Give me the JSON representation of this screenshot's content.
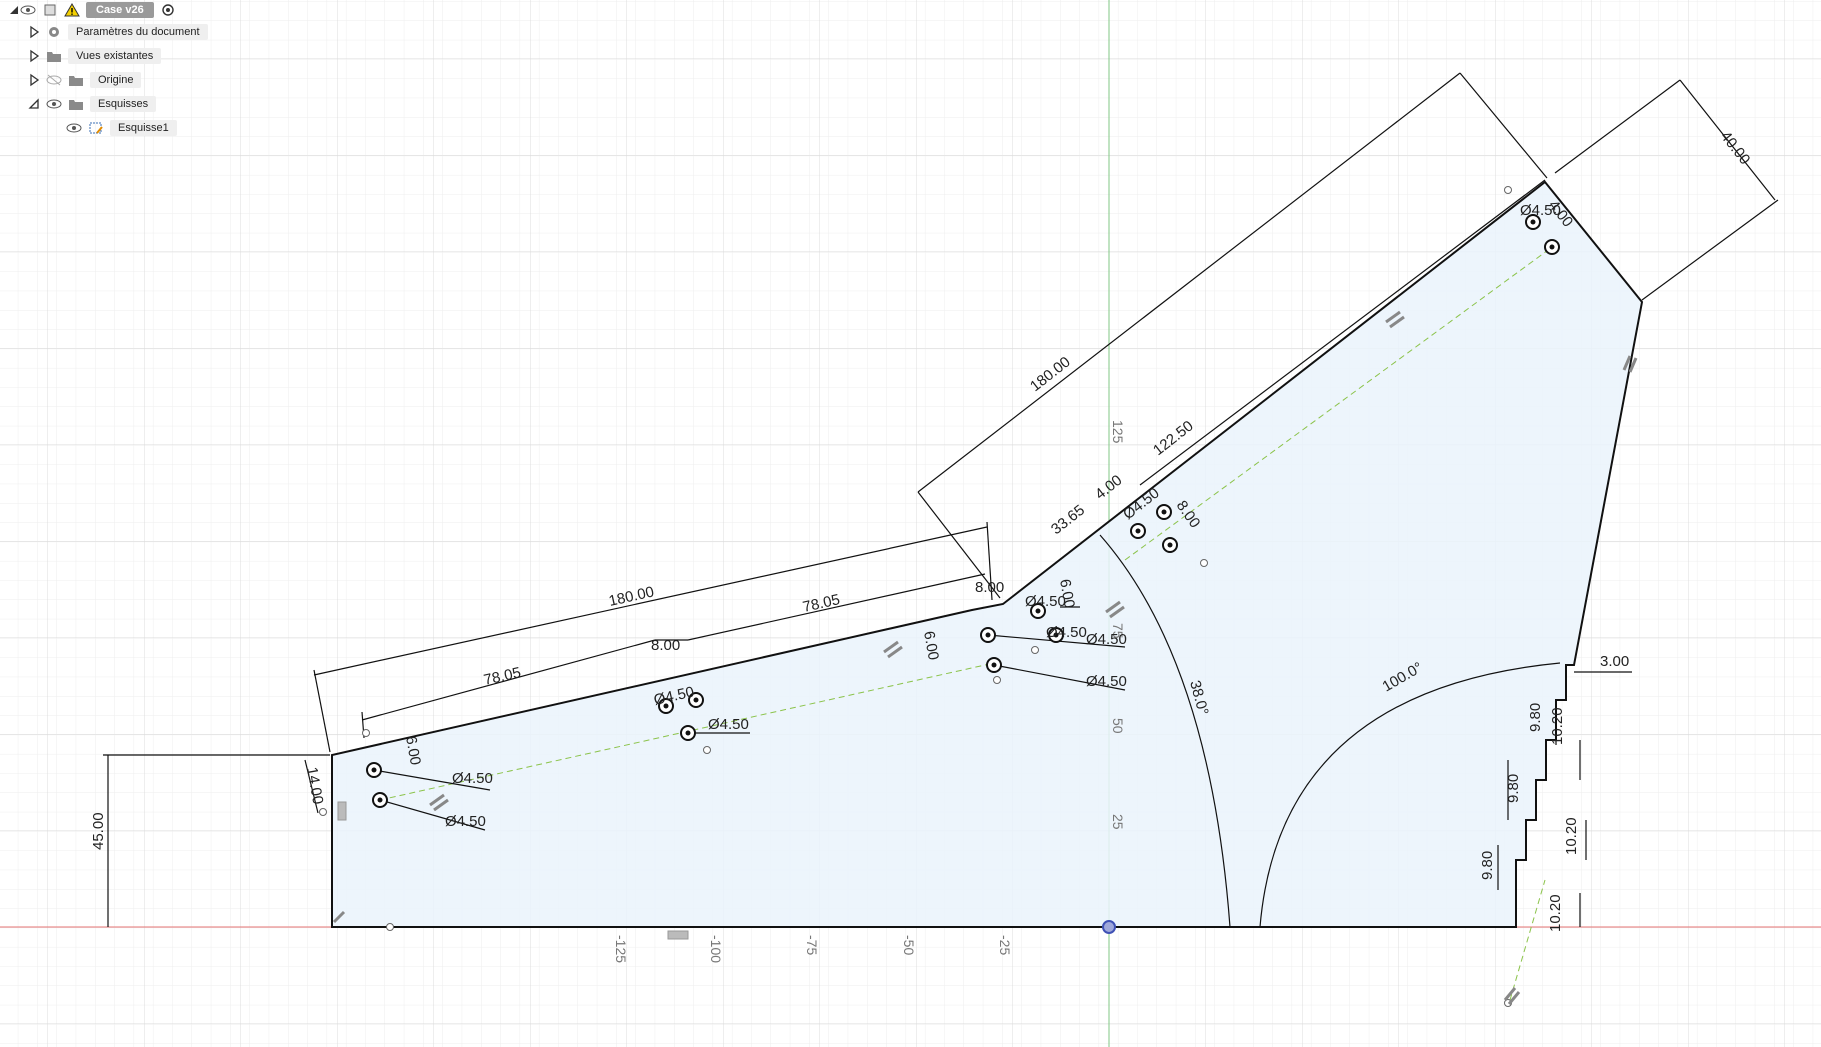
{
  "browser": {
    "root_label": "Case v26",
    "items": [
      {
        "label": "Paramètres du document"
      },
      {
        "label": "Vues existantes"
      },
      {
        "label": "Origine"
      },
      {
        "label": "Esquisses"
      },
      {
        "label": "Esquisse1"
      }
    ]
  },
  "axes": {
    "x_ticks": [
      "-125",
      "-100",
      "-75",
      "-50",
      "-25"
    ],
    "y_ticks": [
      "125",
      "75",
      "50",
      "25"
    ]
  },
  "dimensions": {
    "d_180_top": "180.00",
    "d_180_left": "180.00",
    "d_78_left": "78.05",
    "d_78_right": "78.05",
    "d_8_left": "8.00",
    "d_8_mid": "8.00",
    "d_8_right": "8.00",
    "d_6_left": "6.00",
    "d_6_mid": "6.00",
    "d_6_right": "6.00",
    "d_14": "14.00",
    "d_45": "45.00",
    "d_33": "33.65",
    "d_122": "122.50",
    "d_40": "40.00",
    "d_4_a": "4.00",
    "d_4_b": "4.00",
    "d_3": "3.00",
    "d_98_a": "9.80",
    "d_98_b": "9.80",
    "d_98_c": "9.80",
    "d_102_a": "10.20",
    "d_102_b": "10.20",
    "d_102_c": "10.20",
    "ang_38": "38.0°",
    "ang_100": "100.0°",
    "dia_1": "Ø4.50",
    "dia_2": "Ø4.50",
    "dia_3": "Ø4.50",
    "dia_4": "Ø4.50",
    "dia_5": "Ø4.50",
    "dia_6": "Ø4.50",
    "dia_7": "Ø4.50",
    "dia_8": "Ø4.50",
    "dia_9": "Ø4.50",
    "dia_10": "Ø4.50"
  },
  "colors": {
    "grid": "#e6e6e6",
    "x_axis": "#e57373",
    "y_axis": "#81c784",
    "profile_fill": "#eaf3fb",
    "warning": "#f4d000"
  }
}
